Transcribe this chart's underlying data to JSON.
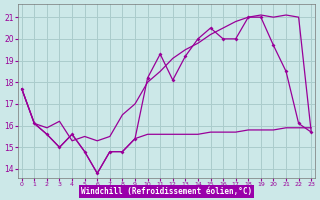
{
  "background_color": "#cce8e8",
  "line_color": "#990099",
  "grid_color": "#aacccc",
  "xlabel": "Windchill (Refroidissement éolien,°C)",
  "xlabel_bg": "#9900aa",
  "xlabel_fg": "#ffffff",
  "yticks": [
    14,
    15,
    16,
    17,
    18,
    19,
    20,
    21
  ],
  "xticks": [
    0,
    1,
    2,
    3,
    4,
    5,
    6,
    7,
    8,
    9,
    10,
    11,
    12,
    13,
    14,
    15,
    16,
    17,
    18,
    19,
    20,
    21,
    22,
    23
  ],
  "xlim": [
    -0.3,
    23.3
  ],
  "ylim": [
    13.6,
    21.6
  ],
  "series1_x": [
    0,
    1,
    2,
    3,
    4,
    5,
    6,
    7,
    8,
    9,
    10,
    11,
    12,
    13,
    14,
    15,
    16,
    17,
    18,
    19,
    20,
    21,
    22,
    23
  ],
  "series1_y": [
    17.7,
    16.1,
    15.6,
    15.0,
    15.6,
    14.8,
    13.8,
    14.8,
    14.8,
    15.4,
    15.6,
    15.6,
    15.6,
    15.6,
    15.6,
    15.7,
    15.7,
    15.7,
    15.8,
    15.8,
    15.8,
    15.9,
    15.9,
    15.9
  ],
  "series2_x": [
    0,
    1,
    2,
    3,
    4,
    5,
    6,
    7,
    8,
    9,
    10,
    11,
    12,
    13,
    14,
    15,
    16,
    17,
    18,
    19,
    20,
    21,
    22,
    23
  ],
  "series2_y": [
    17.7,
    16.1,
    15.6,
    15.0,
    15.6,
    14.8,
    13.8,
    14.8,
    14.8,
    15.4,
    18.2,
    19.3,
    18.1,
    19.2,
    20.0,
    20.5,
    20.0,
    20.0,
    21.0,
    21.0,
    19.7,
    18.5,
    16.1,
    15.7
  ],
  "series3_x": [
    0,
    1,
    2,
    3,
    4,
    5,
    6,
    7,
    8,
    9,
    10,
    11,
    12,
    13,
    14,
    15,
    16,
    17,
    18,
    19,
    20,
    21,
    22,
    23
  ],
  "series3_y": [
    17.7,
    16.1,
    15.9,
    16.2,
    15.3,
    15.5,
    15.3,
    15.5,
    16.5,
    17.0,
    18.0,
    18.5,
    19.1,
    19.5,
    19.8,
    20.2,
    20.5,
    20.8,
    21.0,
    21.1,
    21.0,
    21.1,
    21.0,
    15.7
  ]
}
